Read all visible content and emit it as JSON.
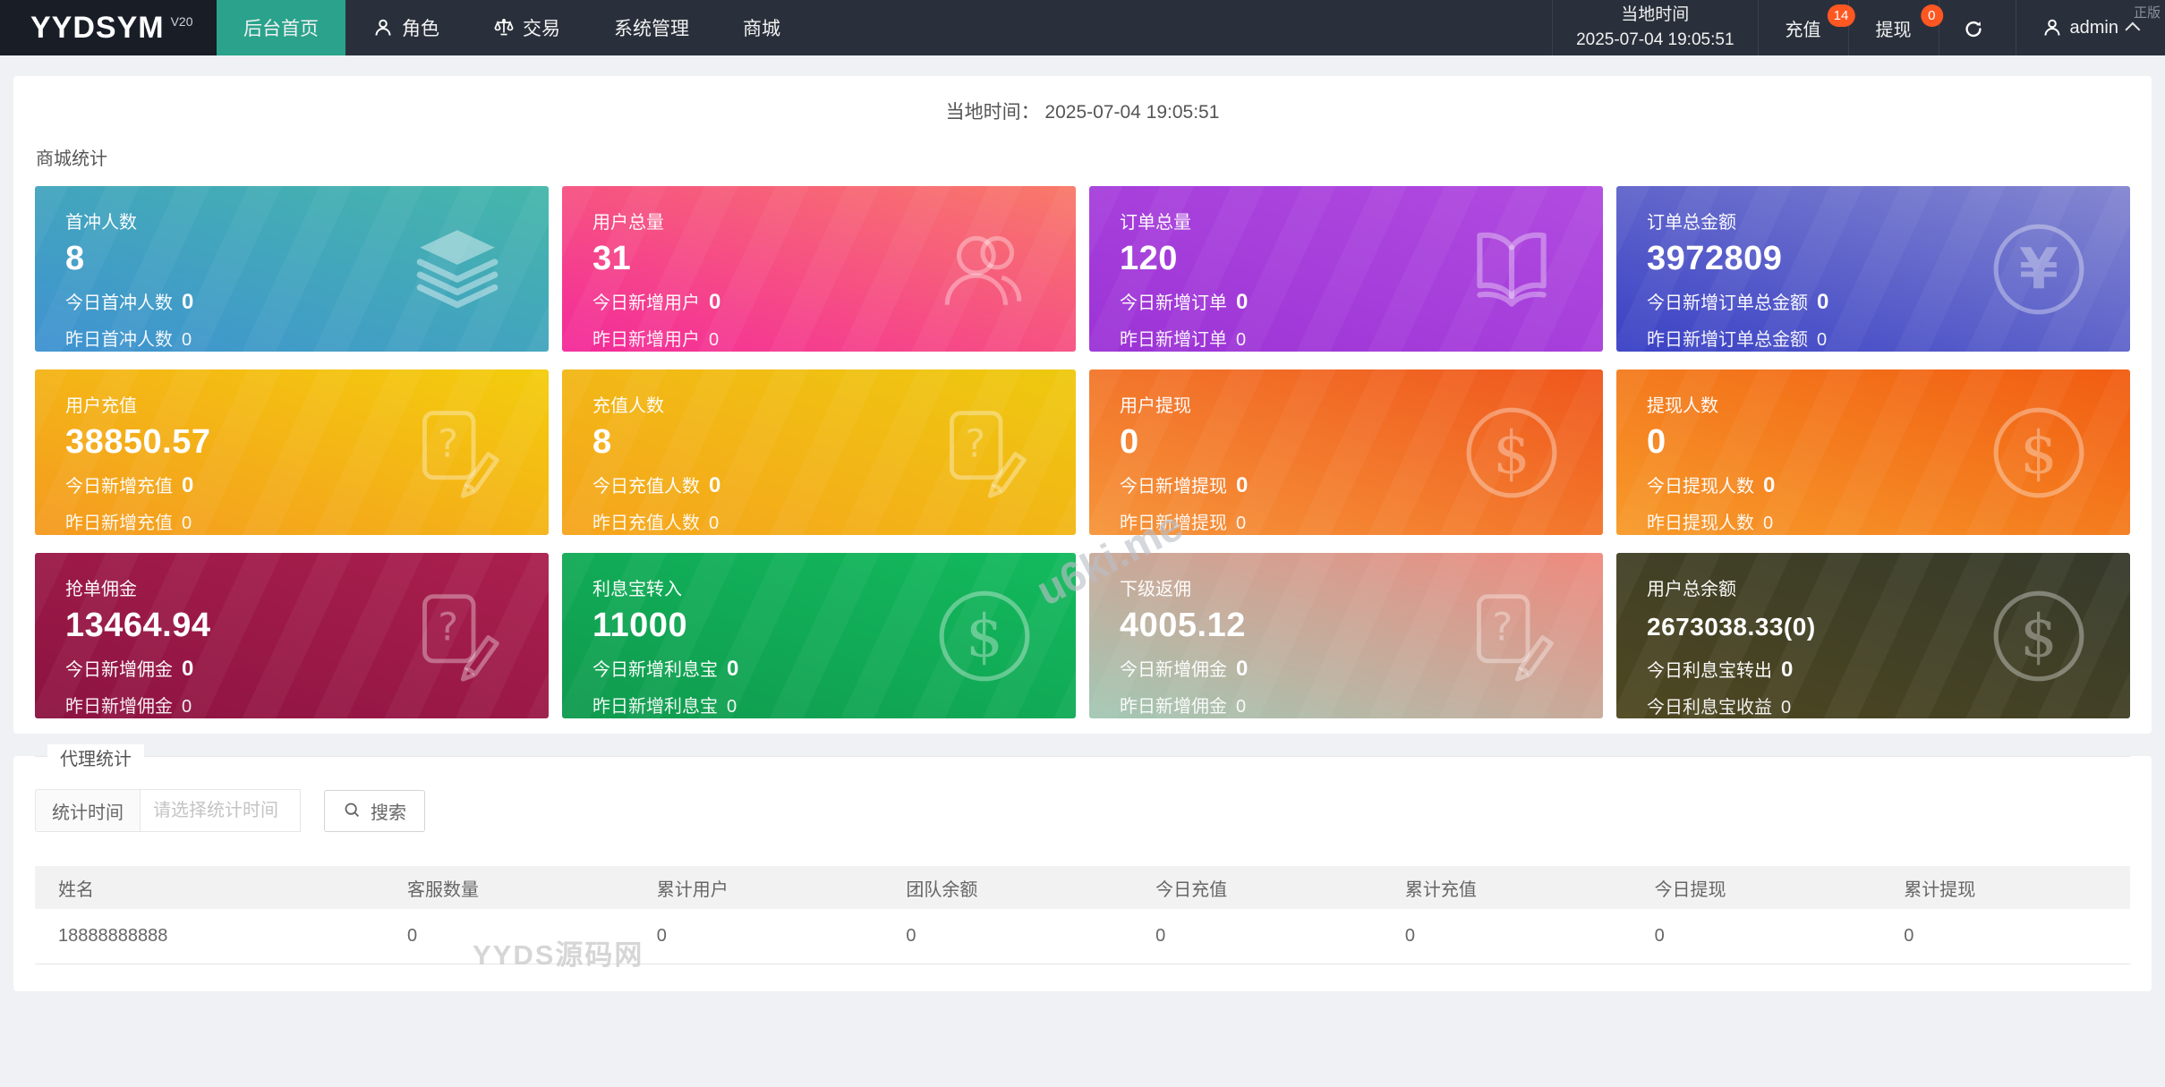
{
  "app": {
    "logo": "YYDSYM",
    "version": "V20"
  },
  "nav": {
    "items": [
      {
        "label": "后台首页",
        "icon": null,
        "active": true
      },
      {
        "label": "角色",
        "icon": "user-icon",
        "active": false
      },
      {
        "label": "交易",
        "icon": "scales-icon",
        "active": false
      },
      {
        "label": "系统管理",
        "icon": null,
        "active": false
      },
      {
        "label": "商城",
        "icon": null,
        "active": false
      }
    ]
  },
  "topbar_right": {
    "local_time_label": "当地时间",
    "local_time": "2025-07-04 19:05:51",
    "recharge_label": "充值",
    "recharge_badge": "14",
    "withdraw_label": "提现",
    "withdraw_badge": "0",
    "username": "admin"
  },
  "banner": {
    "label": "当地时间：",
    "value": "2025-07-04 19:05:51"
  },
  "stats": {
    "title": "商城统计",
    "cards": [
      {
        "title": "首冲人数",
        "value": "8",
        "line2_label": "今日首冲人数",
        "line2_value": "0",
        "line3_label": "昨日首冲人数",
        "line3_value": "0",
        "icon": "layers-icon",
        "colors": [
          "#3f92d2",
          "#45b7a9"
        ]
      },
      {
        "title": "用户总量",
        "value": "31",
        "line2_label": "今日新增用户",
        "line2_value": "0",
        "line3_label": "昨日新增用户",
        "line3_value": "0",
        "icon": "users-icon",
        "colors": [
          "#f42a9b",
          "#f87a69"
        ]
      },
      {
        "title": "订单总量",
        "value": "120",
        "line2_label": "今日新增订单",
        "line2_value": "0",
        "line3_label": "昨日新增订单",
        "line3_value": "0",
        "icon": "book-icon",
        "colors": [
          "#9c33d6",
          "#b14be0"
        ]
      },
      {
        "title": "订单总金额",
        "value": "3972809",
        "line2_label": "今日新增订单总金额",
        "line2_value": "0",
        "line3_label": "昨日新增订单总金额",
        "line3_value": "0",
        "icon": "yen-circle-icon",
        "colors": [
          "#3a41c5",
          "#8487d0"
        ]
      },
      {
        "title": "用户充值",
        "value": "38850.57",
        "line2_label": "今日新增充值",
        "line2_value": "0",
        "line3_label": "昨日新增充值",
        "line3_value": "0",
        "icon": "doc-question-icon",
        "colors": [
          "#f59a20",
          "#f3cd0d"
        ]
      },
      {
        "title": "充值人数",
        "value": "8",
        "line2_label": "今日充值人数",
        "line2_value": "0",
        "line3_label": "昨日充值人数",
        "line3_value": "0",
        "icon": "doc-question-icon",
        "colors": [
          "#f6a41d",
          "#eec90f"
        ]
      },
      {
        "title": "用户提现",
        "value": "0",
        "line2_label": "今日新增提现",
        "line2_value": "0",
        "line3_label": "昨日新增提现",
        "line3_value": "0",
        "icon": "dollar-circle-icon",
        "colors": [
          "#f6953a",
          "#ef571c"
        ]
      },
      {
        "title": "提现人数",
        "value": "0",
        "line2_label": "今日提现人数",
        "line2_value": "0",
        "line3_label": "昨日提现人数",
        "line3_value": "0",
        "icon": "dollar-circle-icon",
        "colors": [
          "#f79b2a",
          "#f15c12"
        ]
      },
      {
        "title": "抢单佣金",
        "value": "13464.94",
        "line2_label": "今日新增佣金",
        "line2_value": "0",
        "line3_label": "昨日新增佣金",
        "line3_value": "0",
        "icon": "doc-question-icon",
        "colors": [
          "#8c1340",
          "#aa1f4e"
        ]
      },
      {
        "title": "利息宝转入",
        "value": "11000",
        "line2_label": "今日新增利息宝",
        "line2_value": "0",
        "line3_label": "昨日新增利息宝",
        "line3_value": "0",
        "icon": "dollar-circle-icon",
        "colors": [
          "#0f9a4e",
          "#13ba5d"
        ]
      },
      {
        "title": "下级返佣",
        "value": "4005.12",
        "line2_label": "今日新增佣金",
        "line2_value": "0",
        "line3_label": "昨日新增佣金",
        "line3_value": "0",
        "icon": "doc-question-icon",
        "colors": [
          "#a2c8b4",
          "#ef8a7e"
        ]
      },
      {
        "title": "用户总余额",
        "value": "2673038.33(0)",
        "line2_label": "今日利息宝转出",
        "line2_value": "0",
        "line3_label": "今日利息宝收益",
        "line3_value": "0",
        "icon": "dollar-circle-icon",
        "colors": [
          "#4e4720",
          "#363a2b"
        ]
      }
    ]
  },
  "agent": {
    "title": "代理统计",
    "field_label": "统计时间",
    "placeholder": "请选择统计时间",
    "search_label": "搜索"
  },
  "table": {
    "headers": [
      "姓名",
      "客服数量",
      "累计用户",
      "团队余额",
      "今日充值",
      "累计充值",
      "今日提现",
      "累计提现"
    ],
    "rows": [
      [
        "18888888888",
        "0",
        "0",
        "0",
        "0",
        "0",
        "0",
        "0"
      ]
    ]
  },
  "watermarks": {
    "diagonal": "u6ki.me",
    "footer": "YYDS源码网",
    "corner": "正版"
  },
  "colors": {
    "accent": "#2aa28c",
    "badge": "#ff5722"
  }
}
